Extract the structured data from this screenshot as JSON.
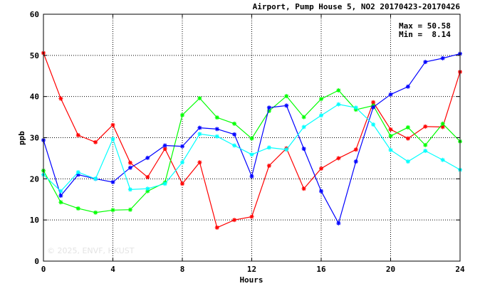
{
  "chart_data": {
    "type": "line",
    "title": "Airport, Pump House 5, NO2 20170423-20170426",
    "xlabel": "Hours",
    "ylabel": "ppb",
    "xlim": [
      0,
      24
    ],
    "ylim": [
      0,
      60
    ],
    "xticks": [
      0,
      4,
      8,
      12,
      16,
      20,
      24
    ],
    "yticks": [
      0,
      10,
      20,
      30,
      40,
      50,
      60
    ],
    "grid": true,
    "stats": {
      "max_label": "Max = 50.58",
      "min_label": "Min =  8.14"
    },
    "watermark": "© 2025, ENVF, HKUST",
    "x": [
      0,
      1,
      2,
      3,
      4,
      5,
      6,
      7,
      8,
      9,
      10,
      11,
      12,
      13,
      14,
      15,
      16,
      17,
      18,
      19,
      20,
      21,
      22,
      23,
      24
    ],
    "series": [
      {
        "color": "#ff0000",
        "values": [
          50.58,
          39.5,
          30.6,
          28.9,
          33.1,
          23.9,
          20.4,
          27.3,
          18.8,
          24.0,
          8.14,
          10.0,
          10.8,
          23.2,
          27.4,
          17.6,
          22.5,
          25.0,
          27.1,
          38.6,
          32.0,
          29.8,
          32.7,
          32.6,
          46.0
        ]
      },
      {
        "color": "#00ff00",
        "values": [
          22.0,
          14.3,
          12.8,
          11.8,
          12.4,
          12.5,
          17.0,
          19.1,
          35.5,
          39.6,
          34.9,
          33.4,
          29.8,
          36.5,
          40.1,
          35.0,
          39.4,
          41.5,
          36.8,
          37.8,
          30.4,
          32.5,
          28.2,
          33.4,
          29.1
        ]
      },
      {
        "color": "#0000ff",
        "values": [
          29.4,
          15.9,
          21.0,
          20.0,
          19.2,
          22.7,
          25.1,
          28.1,
          27.9,
          32.4,
          32.1,
          30.8,
          20.6,
          37.3,
          37.8,
          27.3,
          17.0,
          9.2,
          24.2,
          37.4,
          40.5,
          42.4,
          48.4,
          49.3,
          50.4
        ]
      },
      {
        "color": "#00ffff",
        "values": [
          21.0,
          17.0,
          21.6,
          20.0,
          29.7,
          17.4,
          17.6,
          18.8,
          24.0,
          30.9,
          30.3,
          28.1,
          25.9,
          27.6,
          27.1,
          32.6,
          35.4,
          38.1,
          37.3,
          33.2,
          27.0,
          24.2,
          26.8,
          24.6,
          22.2
        ]
      }
    ]
  }
}
